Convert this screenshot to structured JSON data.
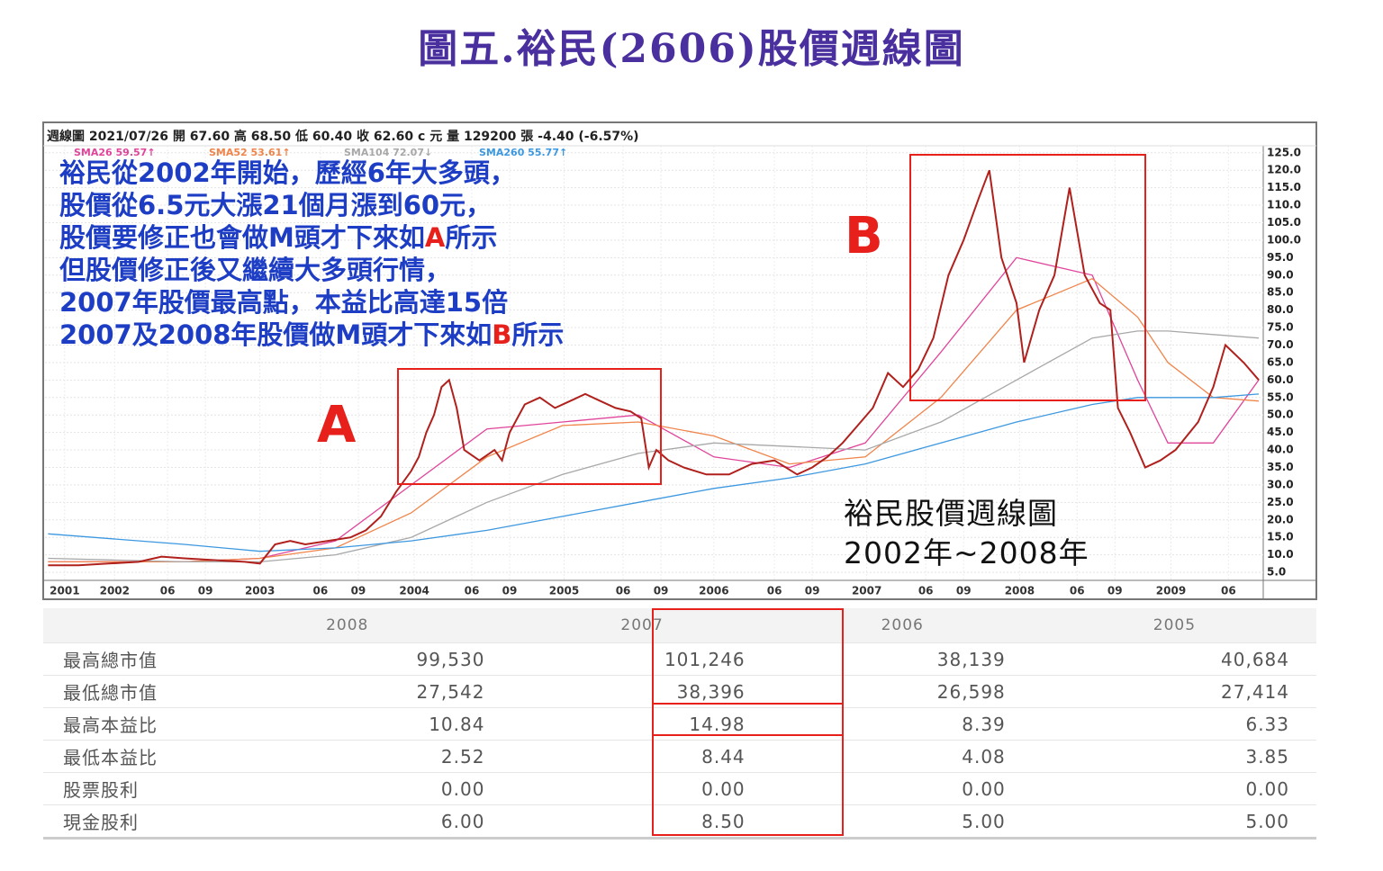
{
  "title": "圖五.裕民(2606)股價週線圖",
  "chart_data": {
    "type": "line",
    "header": "週線圖  2021/07/26  開 67.60  高 68.50  低 60.40  收 62.60 c 元  量 129200 張  -4.40 (-6.57%)",
    "color": "#b0201c",
    "x": [
      2001.6,
      2001.8,
      2002.0,
      2002.2,
      2002.35,
      2002.5,
      2002.7,
      2002.9,
      2003.0,
      2003.1,
      2003.2,
      2003.3,
      2003.45,
      2003.6,
      2003.7,
      2003.8,
      2003.9,
      2004.0,
      2004.05,
      2004.1,
      2004.15,
      2004.2,
      2004.25,
      2004.3,
      2004.35,
      2004.45,
      2004.55,
      2004.6,
      2004.65,
      2004.75,
      2004.85,
      2004.95,
      2005.05,
      2005.15,
      2005.25,
      2005.35,
      2005.45,
      2005.52,
      2005.57,
      2005.62,
      2005.7,
      2005.8,
      2005.95,
      2006.1,
      2006.25,
      2006.4,
      2006.55,
      2006.65,
      2006.75,
      2006.85,
      2006.95,
      2007.05,
      2007.15,
      2007.25,
      2007.35,
      2007.45,
      2007.55,
      2007.65,
      2007.75,
      2007.82,
      2007.9,
      2008.0,
      2008.05,
      2008.15,
      2008.25,
      2008.35,
      2008.45,
      2008.55,
      2008.62,
      2008.67,
      2008.75,
      2008.85,
      2008.95,
      2009.05,
      2009.2,
      2009.3,
      2009.38,
      2009.5,
      2009.6
    ],
    "values": [
      7,
      7,
      7.5,
      8,
      9.5,
      9,
      8.5,
      8,
      7.5,
      13,
      14,
      13,
      14,
      15,
      17,
      21,
      28,
      34,
      38,
      45,
      50,
      58,
      60,
      52,
      40,
      37,
      40,
      37,
      45,
      53,
      55,
      52,
      54,
      56,
      54,
      52,
      51,
      49,
      35,
      40,
      37,
      35,
      33,
      33,
      36,
      37,
      33,
      35,
      38,
      42,
      47,
      52,
      62,
      58,
      63,
      72,
      90,
      100,
      112,
      120,
      95,
      82,
      65,
      80,
      90,
      115,
      90,
      82,
      80,
      52,
      45,
      35,
      37,
      40,
      48,
      58,
      70,
      65,
      60
    ],
    "series": [
      {
        "name": "SMA26 59.57↑",
        "color": "#e0459a",
        "x": [
          2001.6,
          2002.5,
          2003.0,
          2003.5,
          2004.0,
          2004.5,
          2005.0,
          2005.5,
          2006.0,
          2006.5,
          2007.0,
          2007.5,
          2008.0,
          2008.5,
          2008.8,
          2009.0,
          2009.3,
          2009.6
        ],
        "values": [
          8,
          8,
          9,
          14,
          30,
          46,
          48,
          50,
          38,
          35,
          42,
          68,
          95,
          90,
          60,
          42,
          42,
          60
        ]
      },
      {
        "name": "SMA52 53.61↑",
        "color": "#f0844a",
        "x": [
          2001.6,
          2002.5,
          2003.0,
          2003.5,
          2004.0,
          2004.5,
          2005.0,
          2005.5,
          2006.0,
          2006.5,
          2007.0,
          2007.5,
          2008.0,
          2008.5,
          2008.8,
          2009.0,
          2009.3,
          2009.6
        ],
        "values": [
          8,
          8,
          9,
          12,
          22,
          38,
          47,
          48,
          44,
          36,
          38,
          55,
          80,
          89,
          78,
          65,
          55,
          54
        ]
      },
      {
        "name": "SMA104 72.07↓",
        "color": "#a8a8a8",
        "x": [
          2001.6,
          2002.5,
          2003.0,
          2003.5,
          2004.0,
          2004.5,
          2005.0,
          2005.5,
          2006.0,
          2006.5,
          2007.0,
          2007.5,
          2008.0,
          2008.5,
          2008.8,
          2009.0,
          2009.3,
          2009.6
        ],
        "values": [
          9,
          8,
          8,
          10,
          15,
          25,
          33,
          39,
          42,
          41,
          40,
          48,
          60,
          72,
          74,
          74,
          73,
          72
        ]
      },
      {
        "name": "SMA260 55.77↑",
        "color": "#3d98e0",
        "x": [
          2001.6,
          2002.5,
          2003.0,
          2003.5,
          2004.0,
          2004.5,
          2005.0,
          2005.5,
          2006.0,
          2006.5,
          2007.0,
          2007.5,
          2008.0,
          2008.5,
          2008.8,
          2009.0,
          2009.3,
          2009.6
        ],
        "values": [
          16,
          13,
          11,
          12,
          14,
          17,
          21,
          25,
          29,
          32,
          36,
          42,
          48,
          53,
          55,
          55,
          55,
          56
        ]
      }
    ],
    "xlim": [
      2001.58,
      2009.63
    ],
    "xticks": [
      {
        "value": 2001.71,
        "label": "2001"
      },
      {
        "value": 2002.04,
        "label": "2002"
      },
      {
        "value": 2002.39,
        "label": "06"
      },
      {
        "value": 2002.64,
        "label": "09"
      },
      {
        "value": 2003,
        "label": "2003"
      },
      {
        "value": 2003.4,
        "label": "06"
      },
      {
        "value": 2003.65,
        "label": "09"
      },
      {
        "value": 2004.02,
        "label": "2004"
      },
      {
        "value": 2004.4,
        "label": "06"
      },
      {
        "value": 2004.65,
        "label": "09"
      },
      {
        "value": 2005.01,
        "label": "2005"
      },
      {
        "value": 2005.4,
        "label": "06"
      },
      {
        "value": 2005.65,
        "label": "09"
      },
      {
        "value": 2006.0,
        "label": "2006"
      },
      {
        "value": 2006.4,
        "label": "06"
      },
      {
        "value": 2006.65,
        "label": "09"
      },
      {
        "value": 2007.01,
        "label": "2007"
      },
      {
        "value": 2007.4,
        "label": "06"
      },
      {
        "value": 2007.65,
        "label": "09"
      },
      {
        "value": 2008.02,
        "label": "2008"
      },
      {
        "value": 2008.4,
        "label": "06"
      },
      {
        "value": 2008.65,
        "label": "09"
      },
      {
        "value": 2009.02,
        "label": "2009"
      },
      {
        "value": 2009.4,
        "label": "06"
      }
    ],
    "ylim": [
      2.7,
      127
    ],
    "yticks": [
      {
        "value": 5,
        "label": "5.0"
      },
      {
        "value": 10,
        "label": "10.0"
      },
      {
        "value": 15,
        "label": "15.0"
      },
      {
        "value": 20,
        "label": "20.0"
      },
      {
        "value": 25,
        "label": "25.0"
      },
      {
        "value": 30,
        "label": "30.0"
      },
      {
        "value": 35,
        "label": "35.0"
      },
      {
        "value": 40,
        "label": "40.0"
      },
      {
        "value": 45,
        "label": "45.0"
      },
      {
        "value": 50,
        "label": "50.0"
      },
      {
        "value": 55,
        "label": "55.0"
      },
      {
        "value": 60,
        "label": "60.0"
      },
      {
        "value": 65,
        "label": "65.0"
      },
      {
        "value": 70,
        "label": "70.0"
      },
      {
        "value": 75,
        "label": "75.0"
      },
      {
        "value": 80,
        "label": "80.0"
      },
      {
        "value": 85,
        "label": "85.0"
      },
      {
        "value": 90,
        "label": "90.0"
      },
      {
        "value": 95,
        "label": "95.0"
      },
      {
        "value": 100,
        "label": "100.0"
      },
      {
        "value": 105,
        "label": "105.0"
      },
      {
        "value": 110,
        "label": "110.0"
      },
      {
        "value": 115,
        "label": "115.0"
      },
      {
        "value": 120,
        "label": "120.0"
      },
      {
        "value": 125,
        "label": "125.0"
      }
    ],
    "grid": true,
    "annotations": {
      "notes": [
        [
          "裕民從2002年開始，歷經6年大多頭，"
        ],
        [
          "股價從6.5元大漲21個月漲到60元，"
        ],
        [
          "股價要修正也會做M頭才下來如",
          "A",
          "所示"
        ],
        [
          "但股價修正後又繼續大多頭行情，"
        ],
        [
          "2007年股價最高點，本益比高達15倍"
        ],
        [
          "2007及2008年股價做M頭才下來如",
          "B",
          "所示"
        ]
      ],
      "region_a": "A",
      "region_b": "B",
      "caption": [
        "裕民股價週線圖",
        "2002年~2008年"
      ]
    }
  },
  "table": {
    "header": [
      "",
      "2008",
      "2007",
      "2006",
      "2005"
    ],
    "rows": [
      [
        "最高總市值",
        "99,530",
        "101,246",
        "38,139",
        "40,684"
      ],
      [
        "最低總市值",
        "27,542",
        "38,396",
        "26,598",
        "27,414"
      ],
      [
        "最高本益比",
        "10.84",
        "14.98",
        "8.39",
        "6.33"
      ],
      [
        "最低本益比",
        "2.52",
        "8.44",
        "4.08",
        "3.85"
      ],
      [
        "股票股利",
        "0.00",
        "0.00",
        "0.00",
        "0.00"
      ],
      [
        "現金股利",
        "6.00",
        "8.50",
        "5.00",
        "5.00"
      ]
    ]
  }
}
